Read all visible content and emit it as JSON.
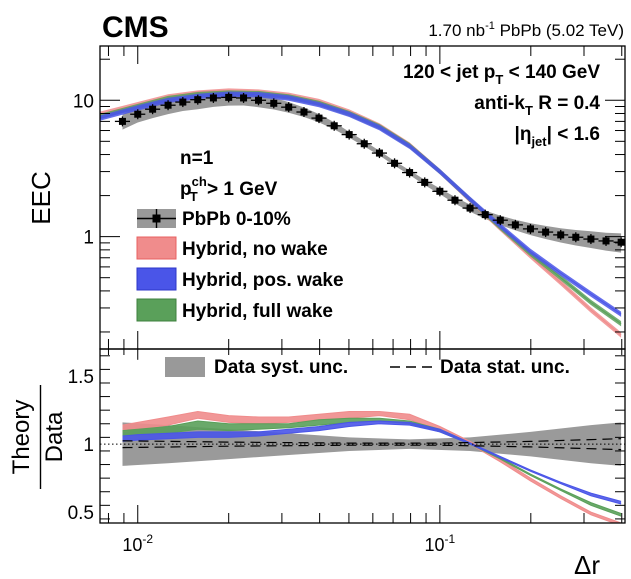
{
  "chart_data": [
    {
      "panel": "top",
      "type": "line",
      "experiment": "CMS",
      "luminosity": "1.70 nb",
      "luminosity_sup": "-1",
      "system": " PbPb (5.02 TeV)",
      "annotations": {
        "jet_pt": [
          "120 < jet p",
          "T",
          " < 140 GeV"
        ],
        "algo": [
          "anti-k",
          "T",
          " R = 0.4"
        ],
        "eta": [
          "|η",
          "jet",
          "| < 1.6"
        ],
        "n": "n=1",
        "pt_cut": [
          "p",
          "ch",
          "T",
          " > 1 GeV"
        ]
      },
      "ylabel": "EEC",
      "xscale": "log",
      "yscale": "log",
      "xlim": [
        0.0075,
        0.41
      ],
      "ylim": [
        0.15,
        25
      ],
      "yticks": [
        {
          "value": 1,
          "label": "1"
        },
        {
          "value": 10,
          "label": "10"
        }
      ],
      "legend": [
        "PbPb 0-10%",
        "Hybrid, no wake",
        "Hybrid, pos. wake",
        "Hybrid, full wake"
      ],
      "series": [
        {
          "name": "PbPb 0-10%",
          "color": "#000000",
          "x": [
            0.0089,
            0.01,
            0.0112,
            0.0126,
            0.0141,
            0.0158,
            0.0178,
            0.02,
            0.0224,
            0.0251,
            0.0282,
            0.0316,
            0.0355,
            0.0398,
            0.0447,
            0.0501,
            0.0562,
            0.0631,
            0.0708,
            0.0794,
            0.0891,
            0.1,
            0.1122,
            0.1259,
            0.1413,
            0.1585,
            0.1778,
            0.1995,
            0.2239,
            0.2512,
            0.2818,
            0.3162,
            0.3548,
            0.3981
          ],
          "y": [
            7.0,
            7.9,
            8.6,
            9.2,
            9.7,
            10.1,
            10.4,
            10.5,
            10.4,
            10.0,
            9.5,
            8.9,
            8.2,
            7.4,
            6.5,
            5.6,
            4.8,
            4.1,
            3.45,
            2.95,
            2.5,
            2.15,
            1.85,
            1.62,
            1.45,
            1.32,
            1.22,
            1.14,
            1.08,
            1.03,
            0.99,
            0.96,
            0.93,
            0.91
          ],
          "syst_rel": [
            0.13,
            0.13,
            0.14,
            0.14,
            0.14,
            0.15,
            0.14,
            0.13,
            0.12,
            0.11,
            0.1,
            0.09,
            0.08,
            0.07,
            0.06,
            0.05,
            0.045,
            0.04,
            0.04,
            0.04,
            0.045,
            0.05,
            0.055,
            0.06,
            0.07,
            0.08,
            0.09,
            0.1,
            0.11,
            0.12,
            0.13,
            0.14,
            0.15,
            0.16
          ]
        },
        {
          "name": "Hybrid, no wake",
          "color": "#f08c8c",
          "x": [
            0.0075,
            0.01,
            0.0126,
            0.0158,
            0.02,
            0.0251,
            0.0316,
            0.0398,
            0.0501,
            0.0631,
            0.0794,
            0.1,
            0.1259,
            0.1585,
            0.1995,
            0.2512,
            0.3162,
            0.3981
          ],
          "y": [
            7.9,
            9.3,
            10.6,
            11.3,
            11.7,
            11.5,
            10.9,
            9.8,
            8.2,
            6.5,
            4.7,
            3.0,
            1.85,
            1.15,
            0.72,
            0.46,
            0.29,
            0.19
          ]
        },
        {
          "name": "Hybrid, pos. wake",
          "color": "#4a55e8",
          "x": [
            0.0075,
            0.01,
            0.0126,
            0.0158,
            0.02,
            0.0251,
            0.0316,
            0.0398,
            0.0501,
            0.0631,
            0.0794,
            0.1,
            0.1259,
            0.1585,
            0.1995,
            0.2512,
            0.3162,
            0.3981
          ],
          "y": [
            7.4,
            8.8,
            10.0,
            10.7,
            11.1,
            11.0,
            10.4,
            9.3,
            7.9,
            6.3,
            4.6,
            3.0,
            1.88,
            1.2,
            0.78,
            0.54,
            0.38,
            0.27
          ]
        },
        {
          "name": "Hybrid, full wake",
          "color": "#5aa05a",
          "x": [
            0.0075,
            0.01,
            0.0126,
            0.0158,
            0.02,
            0.0251,
            0.0316,
            0.0398,
            0.0501,
            0.0631,
            0.0794,
            0.1,
            0.1259,
            0.1585,
            0.1995,
            0.2512,
            0.3162,
            0.3981
          ],
          "y": [
            7.6,
            9.0,
            10.3,
            11.0,
            11.3,
            11.2,
            10.6,
            9.5,
            8.0,
            6.4,
            4.65,
            3.0,
            1.87,
            1.17,
            0.75,
            0.5,
            0.33,
            0.23
          ]
        }
      ]
    },
    {
      "panel": "ratio",
      "type": "line",
      "ylabel": "Theory",
      "ylabel2": "Data",
      "xlabel": "Δr",
      "xscale": "log",
      "xlim": [
        0.0075,
        0.41
      ],
      "ylim": [
        0.42,
        1.7
      ],
      "yticks": [
        {
          "value": 0.5,
          "label": "0.5"
        },
        {
          "value": 1,
          "label": "1"
        },
        {
          "value": 1.5,
          "label": "1.5"
        }
      ],
      "xticks": [
        {
          "value": 0.01,
          "base": "10",
          "exp": "-2"
        },
        {
          "value": 0.1,
          "base": "10",
          "exp": "-1"
        }
      ],
      "legend": [
        "Data syst. unc.",
        "Data stat. unc."
      ],
      "syst_band": {
        "x": [
          0.0089,
          0.0126,
          0.02,
          0.0316,
          0.0501,
          0.0794,
          0.1259,
          0.1995,
          0.3162,
          0.3981
        ],
        "half_width": [
          0.16,
          0.14,
          0.11,
          0.08,
          0.05,
          0.035,
          0.05,
          0.09,
          0.14,
          0.16
        ]
      },
      "stat_band": {
        "x": [
          0.0089,
          0.02,
          0.0501,
          0.1,
          0.1995,
          0.3981
        ],
        "half_width": [
          0.025,
          0.015,
          0.008,
          0.008,
          0.02,
          0.04
        ]
      },
      "series": [
        {
          "name": "Hybrid, no wake",
          "color": "#f08c8c",
          "x": [
            0.0089,
            0.01,
            0.0126,
            0.0158,
            0.02,
            0.0251,
            0.0316,
            0.0398,
            0.0501,
            0.0631,
            0.0794,
            0.1,
            0.1259,
            0.1585,
            0.1995,
            0.2512,
            0.3162,
            0.3981
          ],
          "lo": [
            1.09,
            1.11,
            1.14,
            1.19,
            1.16,
            1.15,
            1.16,
            1.18,
            1.19,
            1.21,
            1.18,
            1.1,
            1.0,
            0.87,
            0.73,
            0.6,
            0.48,
            0.4
          ],
          "hi": [
            1.14,
            1.16,
            1.2,
            1.24,
            1.21,
            1.2,
            1.2,
            1.22,
            1.24,
            1.24,
            1.22,
            1.13,
            1.02,
            0.89,
            0.75,
            0.62,
            0.5,
            0.42
          ]
        },
        {
          "name": "Hybrid, full wake",
          "color": "#5aa05a",
          "x": [
            0.0089,
            0.01,
            0.0126,
            0.0158,
            0.02,
            0.0251,
            0.0316,
            0.0398,
            0.0501,
            0.0631,
            0.0794,
            0.1,
            0.1259,
            0.1585,
            0.1995,
            0.2512,
            0.3162,
            0.3981
          ],
          "lo": [
            1.06,
            1.07,
            1.08,
            1.11,
            1.1,
            1.11,
            1.12,
            1.14,
            1.16,
            1.17,
            1.15,
            1.09,
            1.0,
            0.89,
            0.77,
            0.66,
            0.55,
            0.47
          ],
          "hi": [
            1.1,
            1.11,
            1.13,
            1.17,
            1.15,
            1.15,
            1.15,
            1.18,
            1.19,
            1.19,
            1.17,
            1.11,
            1.01,
            0.9,
            0.78,
            0.67,
            0.57,
            0.49
          ]
        },
        {
          "name": "Hybrid, pos. wake",
          "color": "#4a55e8",
          "x": [
            0.0089,
            0.01,
            0.0126,
            0.0158,
            0.02,
            0.0251,
            0.0316,
            0.0398,
            0.0501,
            0.0631,
            0.0794,
            0.1,
            0.1259,
            0.1585,
            0.1995,
            0.2512,
            0.3162,
            0.3981
          ],
          "lo": [
            1.02,
            1.03,
            1.04,
            1.05,
            1.05,
            1.06,
            1.08,
            1.1,
            1.13,
            1.15,
            1.14,
            1.09,
            1.0,
            0.9,
            0.8,
            0.71,
            0.62,
            0.56
          ],
          "hi": [
            1.06,
            1.07,
            1.08,
            1.09,
            1.09,
            1.09,
            1.11,
            1.13,
            1.16,
            1.17,
            1.16,
            1.11,
            1.01,
            0.91,
            0.81,
            0.72,
            0.64,
            0.58
          ]
        }
      ]
    }
  ]
}
